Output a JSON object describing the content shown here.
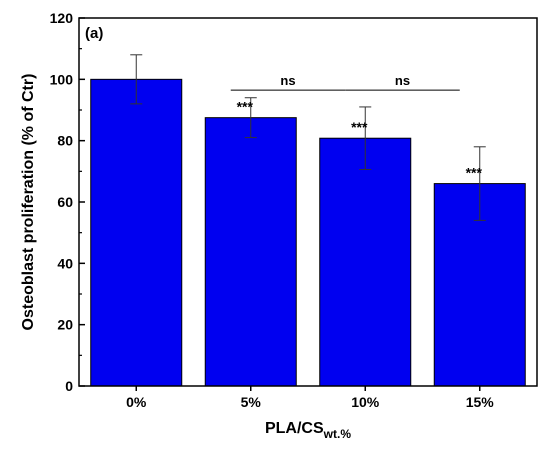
{
  "chart_data": {
    "type": "bar",
    "panel_label": "(a)",
    "categories": [
      "0%",
      "5%",
      "10%",
      "15%"
    ],
    "values": [
      100,
      87.5,
      80.8,
      66
    ],
    "errors": [
      8,
      6.5,
      10.2,
      12
    ],
    "significance": [
      "",
      "***",
      "***",
      "***"
    ],
    "comparisons": [
      {
        "from": 1,
        "to": 2,
        "label": "ns",
        "y": 96.5
      },
      {
        "from": 2,
        "to": 3,
        "label": "ns",
        "y": 96.5
      }
    ],
    "ylabel": "Osteoblast proliferation (% of Ctr)",
    "xlabel_main": "PLA/CS",
    "xlabel_sub": "wt.%",
    "ylim": [
      0,
      120
    ],
    "yticks": [
      0,
      20,
      40,
      60,
      80,
      100,
      120
    ],
    "bar_color": "#0000f0",
    "grid": false
  }
}
